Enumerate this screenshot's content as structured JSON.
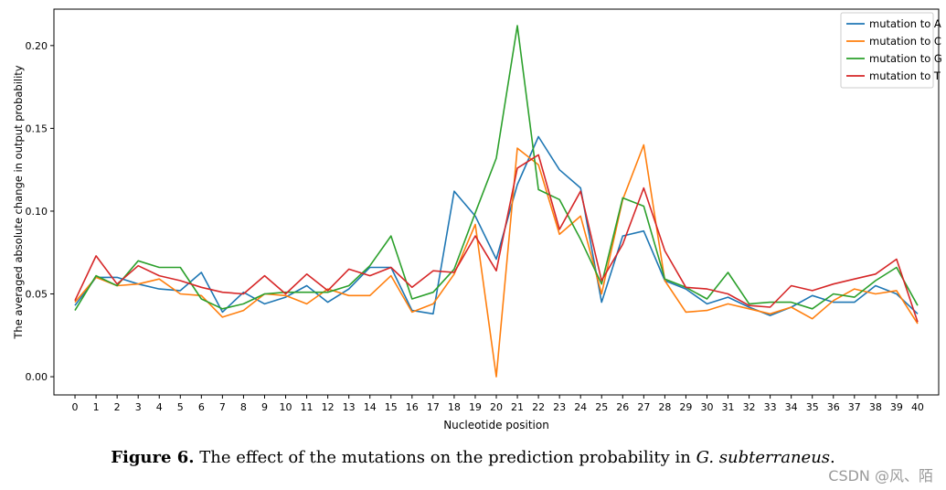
{
  "chart_data": {
    "type": "line",
    "xlabel": "Nucleotide position",
    "ylabel": "The averaged absolute change in output probability",
    "xlim": [
      -1,
      41
    ],
    "ylim": [
      -0.011,
      0.222
    ],
    "yticks": [
      0.0,
      0.05,
      0.1,
      0.15,
      0.2
    ],
    "ytick_labels": [
      "0.00",
      "0.05",
      "0.10",
      "0.15",
      "0.20"
    ],
    "x": [
      0,
      1,
      2,
      3,
      4,
      5,
      6,
      7,
      8,
      9,
      10,
      11,
      12,
      13,
      14,
      15,
      16,
      17,
      18,
      19,
      20,
      21,
      22,
      23,
      24,
      25,
      26,
      27,
      28,
      29,
      30,
      31,
      32,
      33,
      34,
      35,
      36,
      37,
      38,
      39,
      40
    ],
    "legend_position": "top-right",
    "grid": false,
    "series": [
      {
        "name": "mutation to A",
        "color": "#1f77b4",
        "values": [
          0.043,
          0.06,
          0.06,
          0.056,
          0.053,
          0.052,
          0.063,
          0.039,
          0.051,
          0.044,
          0.048,
          0.055,
          0.045,
          0.053,
          0.066,
          0.066,
          0.04,
          0.038,
          0.112,
          0.097,
          0.071,
          0.116,
          0.145,
          0.125,
          0.114,
          0.045,
          0.085,
          0.088,
          0.058,
          0.053,
          0.044,
          0.048,
          0.042,
          0.037,
          0.042,
          0.049,
          0.045,
          0.045,
          0.055,
          0.05,
          0.038
        ]
      },
      {
        "name": "mutation to C",
        "color": "#ff7f0e",
        "values": [
          0.045,
          0.06,
          0.055,
          0.056,
          0.059,
          0.05,
          0.049,
          0.036,
          0.04,
          0.05,
          0.049,
          0.044,
          0.053,
          0.049,
          0.049,
          0.061,
          0.039,
          0.044,
          0.062,
          0.092,
          0.0,
          0.138,
          0.128,
          0.086,
          0.097,
          0.05,
          0.107,
          0.14,
          0.058,
          0.039,
          0.04,
          0.044,
          0.041,
          0.038,
          0.042,
          0.035,
          0.046,
          0.053,
          0.05,
          0.052,
          0.032
        ]
      },
      {
        "name": "mutation to G",
        "color": "#2ca02c",
        "values": [
          0.04,
          0.061,
          0.055,
          0.07,
          0.066,
          0.066,
          0.047,
          0.041,
          0.044,
          0.05,
          0.051,
          0.051,
          0.051,
          0.055,
          0.067,
          0.085,
          0.047,
          0.051,
          0.065,
          0.099,
          0.132,
          0.212,
          0.113,
          0.107,
          0.083,
          0.056,
          0.108,
          0.103,
          0.059,
          0.054,
          0.047,
          0.063,
          0.044,
          0.045,
          0.045,
          0.041,
          0.05,
          0.048,
          0.058,
          0.066,
          0.043
        ]
      },
      {
        "name": "mutation to T",
        "color": "#d62728",
        "values": [
          0.046,
          0.073,
          0.056,
          0.067,
          0.061,
          0.058,
          0.054,
          0.051,
          0.05,
          0.061,
          0.05,
          0.062,
          0.052,
          0.065,
          0.061,
          0.066,
          0.054,
          0.064,
          0.063,
          0.085,
          0.064,
          0.126,
          0.134,
          0.089,
          0.112,
          0.058,
          0.08,
          0.114,
          0.076,
          0.054,
          0.053,
          0.05,
          0.043,
          0.042,
          0.055,
          0.052,
          0.056,
          0.059,
          0.062,
          0.071,
          0.033
        ]
      }
    ]
  },
  "caption": {
    "bold": "Figure 6.",
    "text": " The effect of the mutations on the prediction probability in ",
    "italic": "G. subterraneus",
    "end": "."
  },
  "watermark": "CSDN @风、陌"
}
